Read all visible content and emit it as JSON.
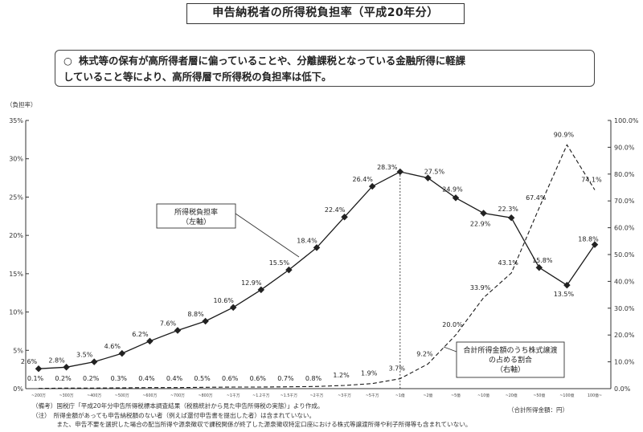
{
  "header": {
    "title": "申告納税者の所得税負担率（平成20年分）"
  },
  "summary": {
    "bullet": "○",
    "line1": "株式等の保有が高所得者層に偏っていることや、分離課税となっている金融所得に軽課",
    "line2": "していること等により、高所得層で所得税の負担率は低下。"
  },
  "chart_data": {
    "type": "line",
    "left_axis_unit": "（負担率）",
    "right_axis_unit": "",
    "x_unit_label": "（合計所得金額：円）",
    "categories": [
      "~200万",
      "~300万",
      "~400万",
      "~500万",
      "~600万",
      "~700万",
      "~800万",
      "~1千万",
      "~1.2千万",
      "~1.5千万",
      "~2千万",
      "~3千万",
      "~5千万",
      "~1億",
      "~2億",
      "~5億",
      "~10億",
      "~20億",
      "~50億",
      "~100億",
      "100億~"
    ],
    "left_ticks": [
      "0%",
      "5%",
      "10%",
      "15%",
      "20%",
      "25%",
      "30%",
      "35%"
    ],
    "right_ticks": [
      "0.0%",
      "10.0%",
      "20.0%",
      "30.0%",
      "40.0%",
      "50.0%",
      "60.0%",
      "70.0%",
      "80.0%",
      "90.0%",
      "100.0%"
    ],
    "ylim_left": [
      0,
      35
    ],
    "ylim_right": [
      0,
      100
    ],
    "series": [
      {
        "name": "所得税負担率\n（左軸）",
        "axis": "left",
        "style": "solid",
        "color": "#1a1a1a",
        "values": [
          2.6,
          2.8,
          3.5,
          4.6,
          6.2,
          7.6,
          8.8,
          10.6,
          12.9,
          15.5,
          18.4,
          22.4,
          26.4,
          28.3,
          27.5,
          24.9,
          22.9,
          22.3,
          15.8,
          13.5,
          18.8
        ],
        "labels": [
          "2.6%",
          "2.8%",
          "3.5%",
          "4.6%",
          "6.2%",
          "7.6%",
          "8.8%",
          "10.6%",
          "12.9%",
          "15.5%",
          "18.4%",
          "22.4%",
          "26.4%",
          "28.3%",
          "27.5%",
          "24.9%",
          "22.9%",
          "22.3%",
          "15.8%",
          "13.5%",
          "18.8%"
        ]
      },
      {
        "name": "合計所得金額のうち株式譲渡\nの占める割合\n（右軸）",
        "axis": "right",
        "style": "dashed",
        "color": "#1a1a1a",
        "values": [
          0.1,
          0.2,
          0.2,
          0.3,
          0.4,
          0.4,
          0.5,
          0.6,
          0.6,
          0.7,
          0.8,
          1.2,
          1.9,
          3.7,
          9.2,
          20.0,
          33.9,
          43.1,
          67.4,
          90.9,
          74.1
        ],
        "labels": [
          "0.1%",
          "0.2%",
          "0.2%",
          "0.3%",
          "0.4%",
          "0.4%",
          "0.5%",
          "0.6%",
          "0.6%",
          "0.7%",
          "0.8%",
          "1.2%",
          "1.9%",
          "3.7%",
          "9.2%",
          "20.0%",
          "33.9%",
          "43.1%",
          "67.4%",
          "90.9%",
          "74.1%"
        ]
      }
    ],
    "grid": false,
    "reference_line_after": "~1億"
  },
  "notes": [
    "（備考）国税庁「平成20年分申告所得税標本調査結果（税務統計から見た申告所得税の実態）」より作成。",
    "（注）　所得金額があっても申告納税額のない者（例えば還付申告書を提出した者）は含まれていない。",
    "　　　　また、申告不要を選択した場合の配当所得や源泉徴収で課税関係が終了した源泉徴収特定口座における株式等譲渡所得や利子所得等も含まれていない。"
  ]
}
